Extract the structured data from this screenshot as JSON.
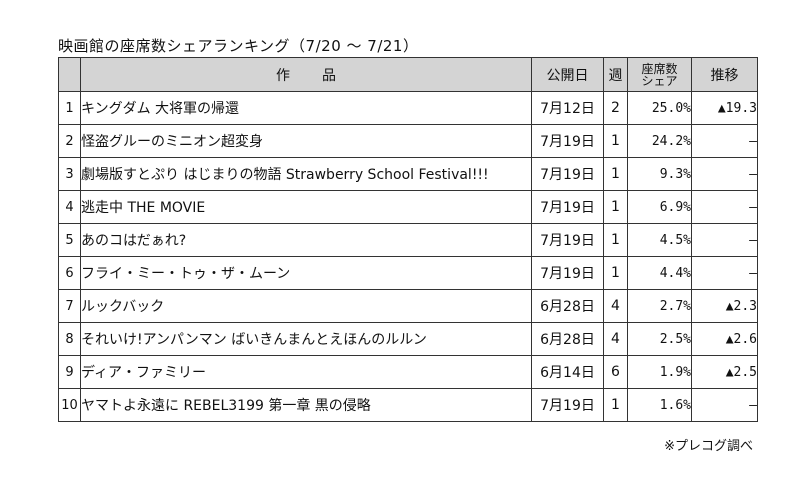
{
  "title": "映画館の座席数シェアランキング（7/20 ～ 7/21）",
  "headers": {
    "work": "作品",
    "release": "公開日",
    "week": "週",
    "share_line1": "座席数",
    "share_line2": "シェア",
    "trend": "推移"
  },
  "rows": [
    {
      "rank": "1",
      "title": "キングダム 大将軍の帰還",
      "release": "7月12日",
      "week": "2",
      "share": "25.0%",
      "trend": "▲19.3"
    },
    {
      "rank": "2",
      "title": "怪盗グルーのミニオン超変身",
      "release": "7月19日",
      "week": "1",
      "share": "24.2%",
      "trend": "—"
    },
    {
      "rank": "3",
      "title": "劇場版すとぷり はじまりの物語 Strawberry School Festival!!!",
      "release": "7月19日",
      "week": "1",
      "share": "9.3%",
      "trend": "—"
    },
    {
      "rank": "4",
      "title": "逃走中 THE MOVIE",
      "release": "7月19日",
      "week": "1",
      "share": "6.9%",
      "trend": "—"
    },
    {
      "rank": "5",
      "title": "あのコはだぁれ?",
      "release": "7月19日",
      "week": "1",
      "share": "4.5%",
      "trend": "—"
    },
    {
      "rank": "6",
      "title": "フライ・ミー・トゥ・ザ・ムーン",
      "release": "7月19日",
      "week": "1",
      "share": "4.4%",
      "trend": "—"
    },
    {
      "rank": "7",
      "title": "ルックバック",
      "release": "6月28日",
      "week": "4",
      "share": "2.7%",
      "trend": "▲2.3"
    },
    {
      "rank": "8",
      "title": "それいけ!アンパンマン ばいきんまんとえほんのルルン",
      "release": "6月28日",
      "week": "4",
      "share": "2.5%",
      "trend": "▲2.6"
    },
    {
      "rank": "9",
      "title": "ディア・ファミリー",
      "release": "6月14日",
      "week": "6",
      "share": "1.9%",
      "trend": "▲2.5"
    },
    {
      "rank": "10",
      "title": "ヤマトよ永遠に REBEL3199 第一章 黒の侵略",
      "release": "7月19日",
      "week": "1",
      "share": "1.6%",
      "trend": "—"
    }
  ],
  "source": "※プレコグ調べ"
}
